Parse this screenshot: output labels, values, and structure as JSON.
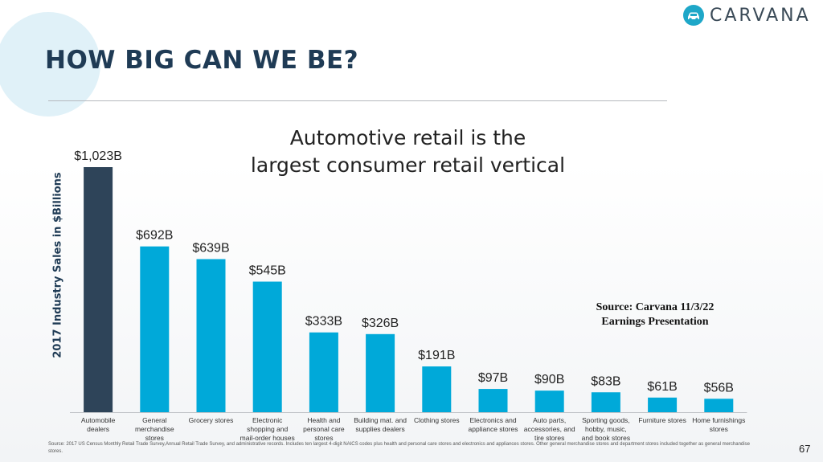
{
  "header": {
    "title": "HOW BIG CAN WE BE?",
    "logo_text": "CARVANA",
    "logo_icon": "car-icon"
  },
  "subtitle": {
    "line1": "Automotive retail is the",
    "line2": "largest consumer retail vertical"
  },
  "source_note": {
    "line1": "Source:  Carvana 11/3/22",
    "line2": "Earnings Presentation"
  },
  "footnote": "Source: 2017 US Census Monthly Retail Trade Survey,Annual Retail Trade Survey, and administrative records. Includes ten largest 4-digit NAICS codes plus health and personal care stores and electronics and appliances stores. Other general merchandise stores and department stores included together as general merchandise stores.",
  "page_number": "67",
  "colors": {
    "highlight_bar": "#2e4459",
    "bar": "#00a9d9",
    "title": "#1f3b55",
    "brand_accent": "#1ea7c8"
  },
  "chart_data": {
    "type": "bar",
    "ylabel": "2017 Industry Sales in $Billions",
    "xlabel": "",
    "ylim": [
      0,
      1023
    ],
    "grid": false,
    "highlight_index": 0,
    "categories": [
      [
        "Automobile",
        "dealers"
      ],
      [
        "General",
        "merchandise",
        "stores"
      ],
      [
        "Grocery stores"
      ],
      [
        "Electronic",
        "shopping and",
        "mail-order houses"
      ],
      [
        "Health and",
        "personal care",
        "stores"
      ],
      [
        "Building mat. and",
        "supplies dealers"
      ],
      [
        "Clothing stores"
      ],
      [
        "Electronics and",
        "appliance stores"
      ],
      [
        "Auto parts,",
        "accessories, and",
        "tire stores"
      ],
      [
        "Sporting goods,",
        "hobby, music,",
        "and book stores"
      ],
      [
        "Furniture stores"
      ],
      [
        "Home furnishings",
        "stores"
      ]
    ],
    "values": [
      1023,
      692,
      639,
      545,
      333,
      326,
      191,
      97,
      90,
      83,
      61,
      56
    ],
    "value_labels": [
      "$1,023B",
      "$692B",
      "$639B",
      "$545B",
      "$333B",
      "$326B",
      "$191B",
      "$97B",
      "$90B",
      "$83B",
      "$61B",
      "$56B"
    ]
  }
}
